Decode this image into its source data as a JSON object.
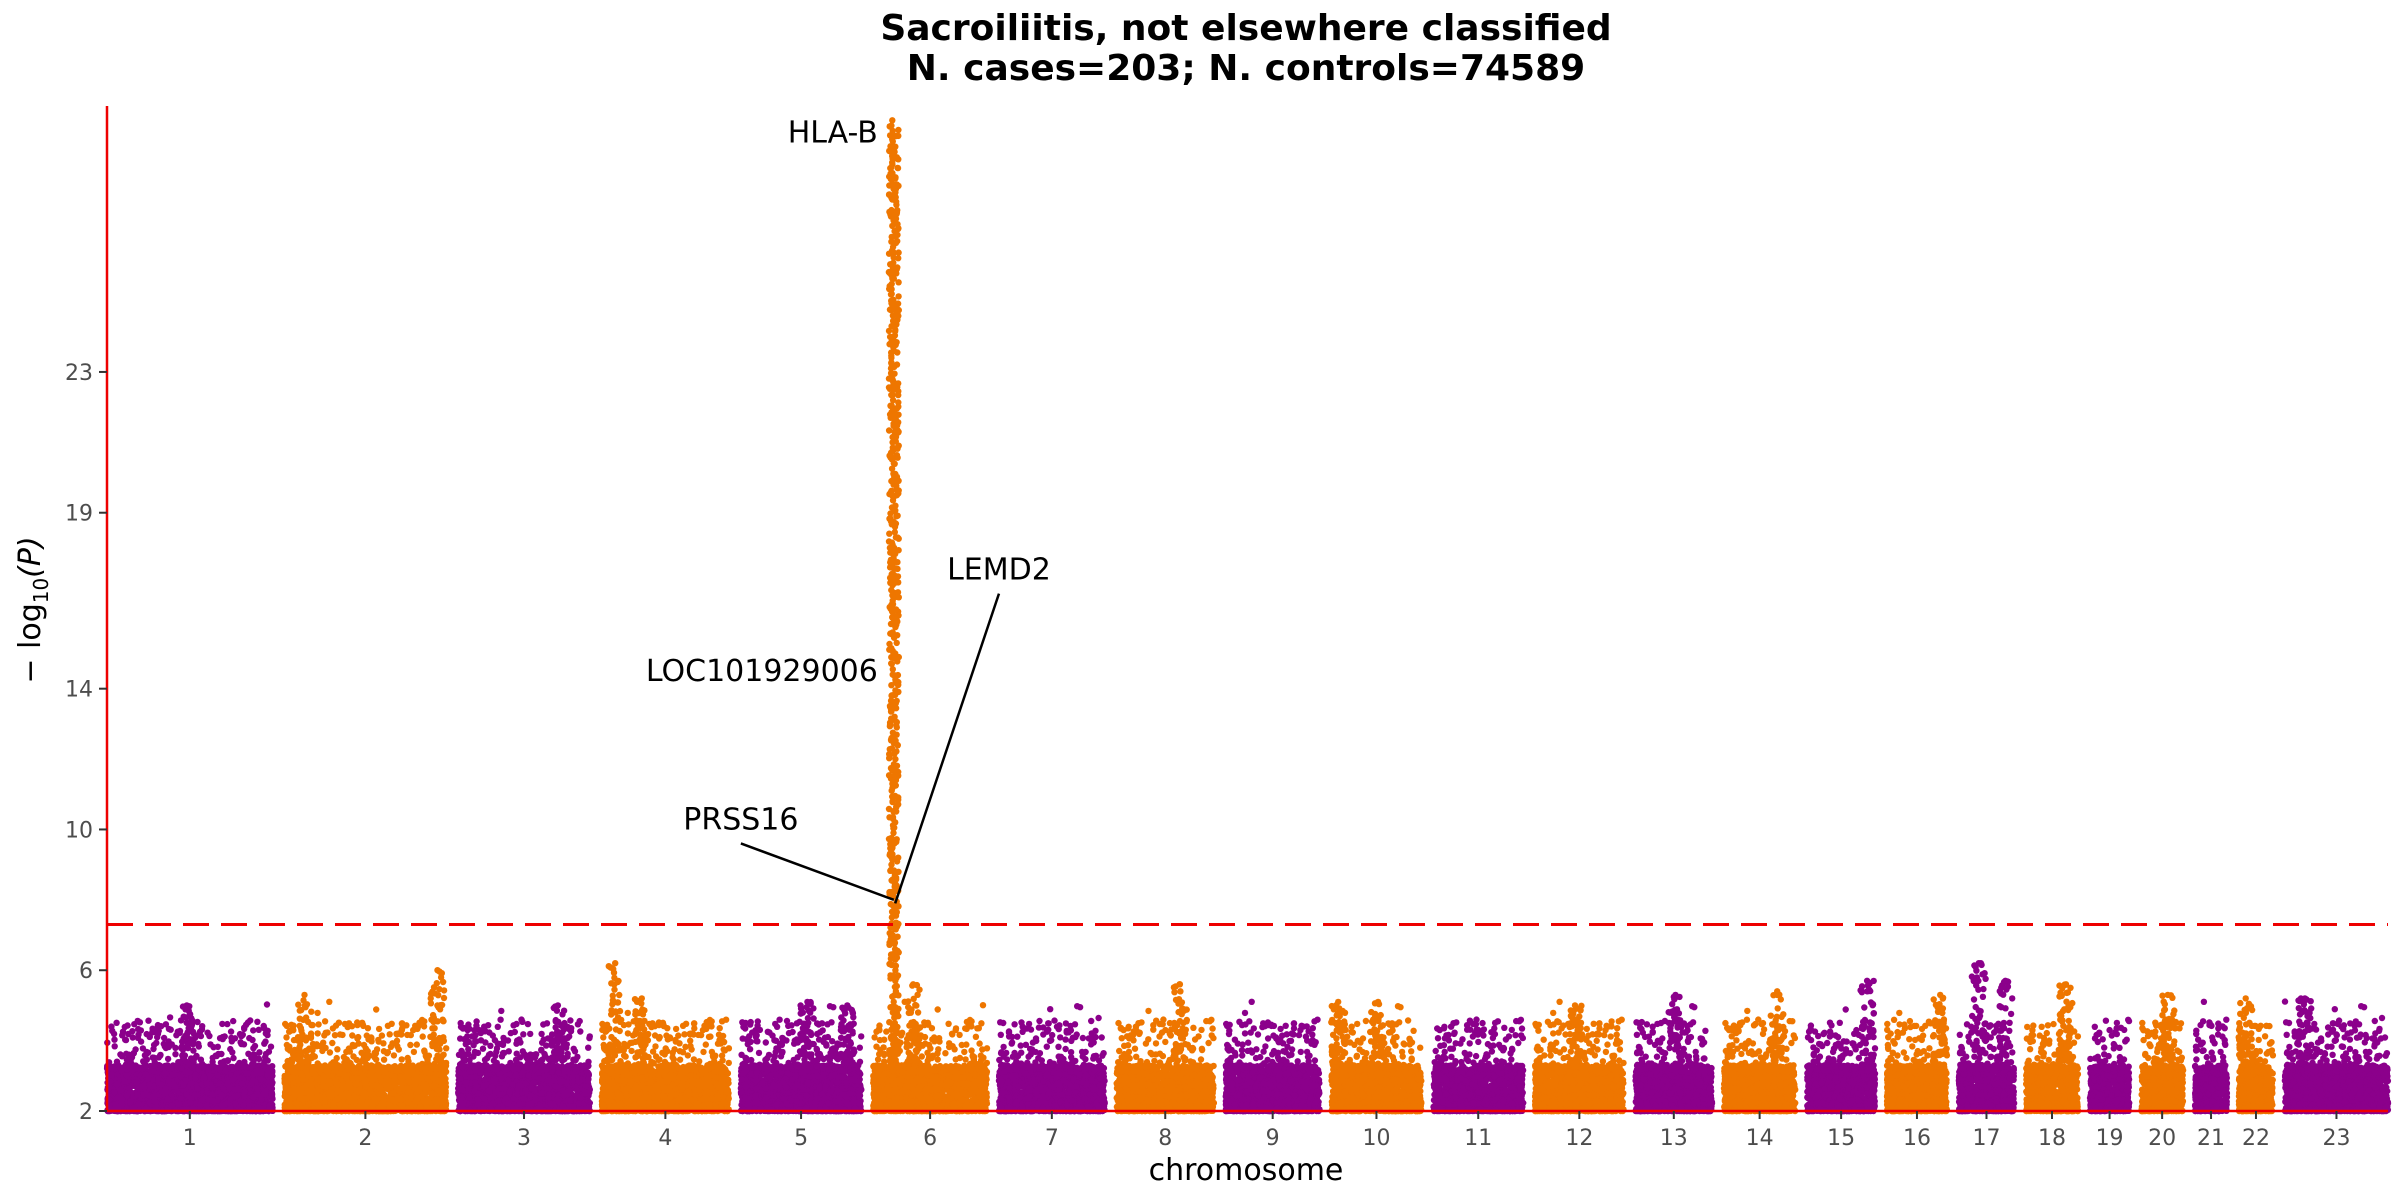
{
  "chart_data": {
    "type": "scatter",
    "subtype": "manhattan",
    "title_line1": "Sacroiliitis, not elsewhere classified",
    "title_line2": "N. cases=203; N. controls=74589",
    "xlabel": "chromosome",
    "ylabel_prefix": "− log",
    "ylabel_sub": "10",
    "ylabel_suffix": "(P)",
    "ylim": [
      2,
      30.5
    ],
    "yticks": [
      2,
      6,
      10,
      14,
      19,
      23
    ],
    "threshold": 7.3,
    "colors": {
      "odd": "#8B008B",
      "even": "#EE7600",
      "axis": "#EE0000",
      "threshold": "#EE0000"
    },
    "chromosomes": [
      {
        "label": "1",
        "length": 249
      },
      {
        "label": "2",
        "length": 243
      },
      {
        "label": "3",
        "length": 198
      },
      {
        "label": "4",
        "length": 191
      },
      {
        "label": "5",
        "length": 181
      },
      {
        "label": "6",
        "length": 171
      },
      {
        "label": "7",
        "length": 159
      },
      {
        "label": "8",
        "length": 146
      },
      {
        "label": "9",
        "length": 141
      },
      {
        "label": "10",
        "length": 135
      },
      {
        "label": "11",
        "length": 135
      },
      {
        "label": "12",
        "length": 133
      },
      {
        "label": "13",
        "length": 115
      },
      {
        "label": "14",
        "length": 107
      },
      {
        "label": "15",
        "length": 102
      },
      {
        "label": "16",
        "length": 90
      },
      {
        "label": "17",
        "length": 83
      },
      {
        "label": "18",
        "length": 78
      },
      {
        "label": "19",
        "length": 59
      },
      {
        "label": "20",
        "length": 63
      },
      {
        "label": "21",
        "length": 48
      },
      {
        "label": "22",
        "length": 51
      },
      {
        "label": "23",
        "length": 155
      }
    ],
    "highlights": [
      {
        "chr": "1",
        "pos": 120,
        "max": 5.0
      },
      {
        "chr": "2",
        "pos": 30,
        "max": 5.3
      },
      {
        "chr": "2",
        "pos": 230,
        "max": 6.0
      },
      {
        "chr": "3",
        "pos": 150,
        "max": 5.0
      },
      {
        "chr": "4",
        "pos": 20,
        "max": 6.2
      },
      {
        "chr": "4",
        "pos": 60,
        "max": 5.2
      },
      {
        "chr": "5",
        "pos": 100,
        "max": 5.1
      },
      {
        "chr": "5",
        "pos": 160,
        "max": 5.0
      },
      {
        "chr": "6",
        "pos": 60,
        "max": 5.6
      },
      {
        "chr": "8",
        "pos": 95,
        "max": 5.6
      },
      {
        "chr": "10",
        "pos": 10,
        "max": 5.1
      },
      {
        "chr": "10",
        "pos": 70,
        "max": 5.1
      },
      {
        "chr": "12",
        "pos": 60,
        "max": 5.0
      },
      {
        "chr": "13",
        "pos": 60,
        "max": 5.3
      },
      {
        "chr": "14",
        "pos": 80,
        "max": 5.4
      },
      {
        "chr": "15",
        "pos": 90,
        "max": 5.7
      },
      {
        "chr": "16",
        "pos": 80,
        "max": 5.3
      },
      {
        "chr": "17",
        "pos": 30,
        "max": 6.2
      },
      {
        "chr": "17",
        "pos": 70,
        "max": 5.7
      },
      {
        "chr": "18",
        "pos": 60,
        "max": 5.6
      },
      {
        "chr": "20",
        "pos": 40,
        "max": 5.3
      },
      {
        "chr": "22",
        "pos": 10,
        "max": 5.2
      },
      {
        "chr": "23",
        "pos": 30,
        "max": 5.2
      }
    ],
    "peak": {
      "chr": "6",
      "pos": 31,
      "max": 30.2
    },
    "annotations": [
      {
        "label": "HLA-B",
        "chr": "6",
        "pos": 31,
        "y": 29.8,
        "label_chr": "6",
        "label_pos": 31,
        "label_y": 29.8,
        "leader": false,
        "anchor": "end"
      },
      {
        "label": "LOC101929006",
        "chr": "6",
        "pos": 31,
        "y": 14.5,
        "label_chr": "6",
        "label_pos": 31,
        "label_y": 14.5,
        "leader": false,
        "anchor": "end"
      },
      {
        "label": "PRSS16",
        "chr": "6",
        "pos": 31,
        "y": 8.0,
        "label_chr": "5",
        "label_pos": 0,
        "label_y": 10.0,
        "leader": true,
        "anchor": "middle"
      },
      {
        "label": "LEMD2",
        "chr": "6",
        "pos": 33,
        "y": 7.9,
        "label_chr": "7",
        "label_pos": 0,
        "label_y": 17.1,
        "leader": true,
        "anchor": "middle"
      }
    ]
  }
}
